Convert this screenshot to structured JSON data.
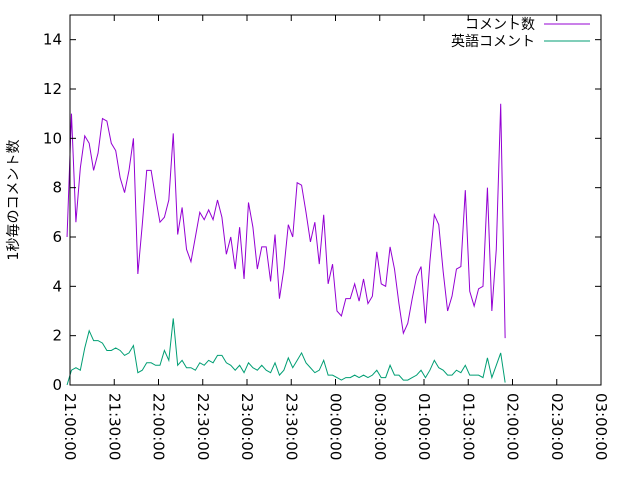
{
  "chart_data": {
    "type": "line",
    "ylabel": "1秒毎のコメント数",
    "xlabel": "",
    "ylim": [
      0,
      15
    ],
    "xlim": [
      "21:00:00",
      "03:00:00"
    ],
    "yticks": [
      0,
      2,
      4,
      6,
      8,
      10,
      12,
      14
    ],
    "xticks": [
      "21:00:00",
      "21:30:00",
      "22:00:00",
      "22:30:00",
      "23:00:00",
      "23:30:00",
      "00:00:00",
      "00:30:00",
      "01:00:00",
      "01:30:00",
      "02:00:00",
      "02:30:00",
      "03:00:00"
    ],
    "grid": false,
    "legend_position": "top-right",
    "x_sample_interval_seconds": 180,
    "x_start": "20:58:00",
    "series": [
      {
        "name": "コメント数",
        "color": "#9400d3",
        "values": [
          6.0,
          11.0,
          6.6,
          8.8,
          10.1,
          9.8,
          8.7,
          9.4,
          10.8,
          10.7,
          9.8,
          9.5,
          8.4,
          7.8,
          8.7,
          10.0,
          4.5,
          6.5,
          8.7,
          8.7,
          7.6,
          6.6,
          6.8,
          7.5,
          10.2,
          6.1,
          7.2,
          5.5,
          5.0,
          6.0,
          7.0,
          6.7,
          7.1,
          6.7,
          7.5,
          6.8,
          5.3,
          6.0,
          4.7,
          6.4,
          4.3,
          7.4,
          6.4,
          4.7,
          5.6,
          5.6,
          4.2,
          6.1,
          3.5,
          4.7,
          6.5,
          6.0,
          8.2,
          8.1,
          7.0,
          5.8,
          6.6,
          4.9,
          6.9,
          4.1,
          4.9,
          3.0,
          2.8,
          3.5,
          3.5,
          4.1,
          3.4,
          4.3,
          3.3,
          3.6,
          5.4,
          4.1,
          4.0,
          5.6,
          4.7,
          3.3,
          2.1,
          2.5,
          3.5,
          4.4,
          4.8,
          2.5,
          5.0,
          6.9,
          6.5,
          4.6,
          3.0,
          3.6,
          4.7,
          4.8,
          7.9,
          3.8,
          3.2,
          3.9,
          4.0,
          8.0,
          3.0,
          5.5,
          11.4,
          1.9
        ]
      },
      {
        "name": "英語コメント",
        "color": "#009e73",
        "values": [
          0.0,
          0.6,
          0.7,
          0.6,
          1.5,
          2.2,
          1.8,
          1.8,
          1.7,
          1.4,
          1.4,
          1.5,
          1.4,
          1.2,
          1.3,
          1.6,
          0.5,
          0.6,
          0.9,
          0.9,
          0.8,
          0.8,
          1.4,
          1.0,
          2.7,
          0.8,
          1.0,
          0.7,
          0.7,
          0.6,
          0.9,
          0.8,
          1.0,
          0.9,
          1.2,
          1.2,
          0.9,
          0.8,
          0.6,
          0.8,
          0.5,
          0.9,
          0.7,
          0.6,
          0.8,
          0.6,
          0.5,
          0.9,
          0.4,
          0.6,
          1.1,
          0.7,
          1.0,
          1.3,
          0.9,
          0.7,
          0.5,
          0.6,
          1.0,
          0.4,
          0.4,
          0.3,
          0.2,
          0.3,
          0.3,
          0.4,
          0.3,
          0.4,
          0.3,
          0.4,
          0.6,
          0.3,
          0.3,
          0.8,
          0.4,
          0.4,
          0.2,
          0.2,
          0.3,
          0.4,
          0.6,
          0.3,
          0.6,
          1.0,
          0.7,
          0.6,
          0.4,
          0.4,
          0.6,
          0.5,
          0.8,
          0.4,
          0.4,
          0.4,
          0.3,
          1.1,
          0.3,
          0.8,
          1.3,
          0.1
        ]
      }
    ]
  }
}
